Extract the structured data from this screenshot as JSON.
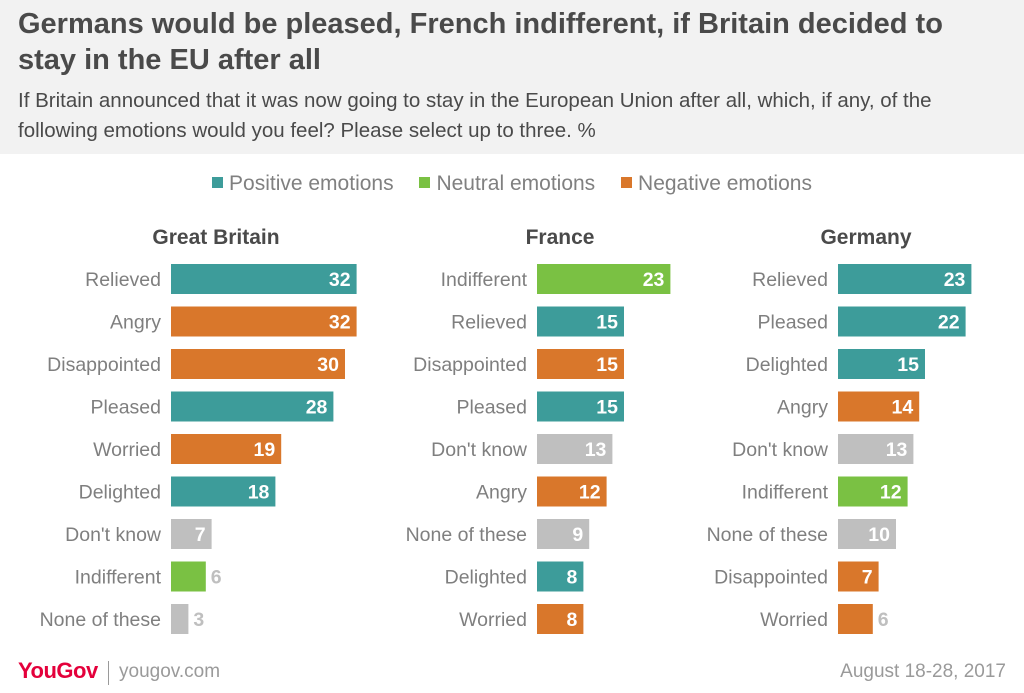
{
  "title": "Germans would be pleased, French indifferent, if Britain decided to stay in the EU after all",
  "subtitle": "If Britain announced that it was now going to stay in the European Union after all, which, if any, of the following emotions would you feel? Please select up to three. %",
  "legend": [
    {
      "label": "Positive emotions",
      "color": "#3d9c9a"
    },
    {
      "label": "Neutral emotions",
      "color": "#7ac143"
    },
    {
      "label": "Negative emotions",
      "color": "#d9772b"
    }
  ],
  "colors": {
    "positive": "#3d9c9a",
    "neutral": "#7ac143",
    "negative": "#d9772b",
    "dontknow": "#bfbfbf"
  },
  "footer": {
    "logo": "YouGov",
    "site": "yougov.com",
    "date": "August 18-28, 2017"
  },
  "chart_data": [
    {
      "type": "bar",
      "title": "Great Britain",
      "categories": [
        "Relieved",
        "Angry",
        "Disappointed",
        "Pleased",
        "Worried",
        "Delighted",
        "Don't know",
        "Indifferent",
        "None of these"
      ],
      "values": [
        32,
        32,
        30,
        28,
        19,
        18,
        7,
        6,
        3
      ],
      "groups": [
        "positive",
        "negative",
        "negative",
        "positive",
        "negative",
        "positive",
        "dontknow",
        "neutral",
        "dontknow"
      ]
    },
    {
      "type": "bar",
      "title": "France",
      "categories": [
        "Indifferent",
        "Relieved",
        "Disappointed",
        "Pleased",
        "Don't know",
        "Angry",
        "None of these",
        "Delighted",
        "Worried"
      ],
      "values": [
        23,
        15,
        15,
        15,
        13,
        12,
        9,
        8,
        8
      ],
      "groups": [
        "neutral",
        "positive",
        "negative",
        "positive",
        "dontknow",
        "negative",
        "dontknow",
        "positive",
        "negative"
      ]
    },
    {
      "type": "bar",
      "title": "Germany",
      "categories": [
        "Relieved",
        "Pleased",
        "Delighted",
        "Angry",
        "Don't know",
        "Indifferent",
        "None of these",
        "Disappointed",
        "Worried"
      ],
      "values": [
        23,
        22,
        15,
        14,
        13,
        12,
        10,
        7,
        6
      ],
      "groups": [
        "positive",
        "positive",
        "positive",
        "negative",
        "dontknow",
        "neutral",
        "dontknow",
        "negative",
        "negative"
      ]
    }
  ]
}
